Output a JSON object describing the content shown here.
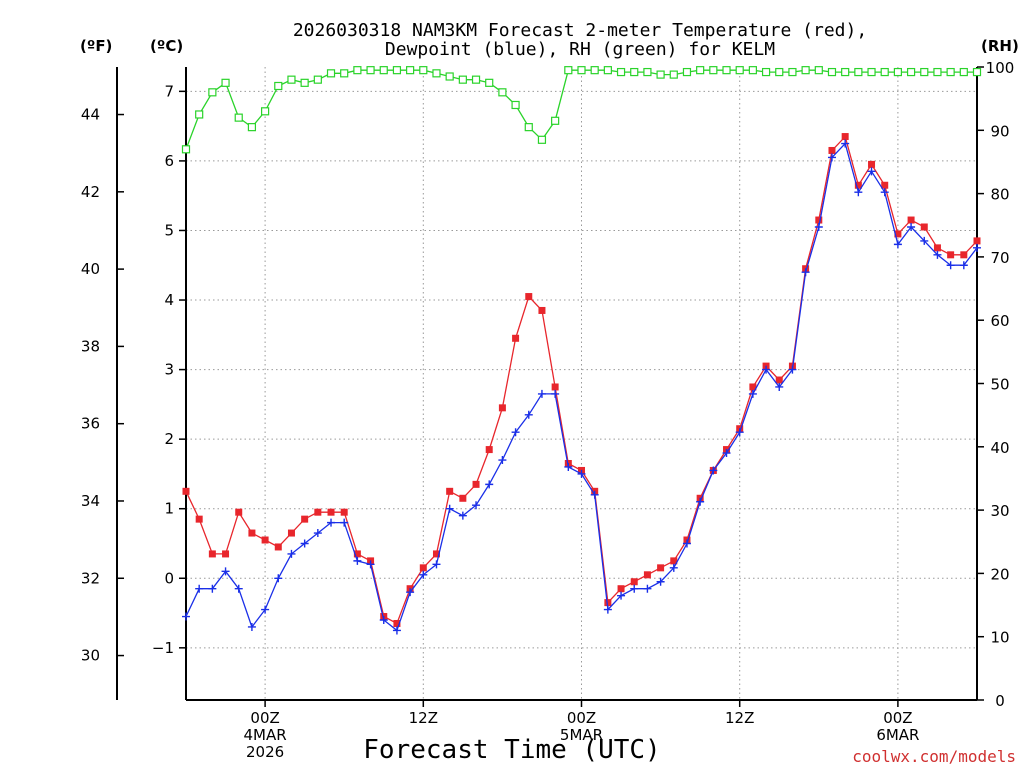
{
  "colors": {
    "temperature": "#e8262c",
    "dewpoint": "#1a2fe8",
    "rh": "#2ad32a",
    "grid": "#9a9a9a",
    "axis": "#000000",
    "credit": "#d03030"
  },
  "chart_data": {
    "type": "line",
    "title_lines": [
      "2026030318 NAM3KM Forecast 2-meter Temperature (red),",
      "Dewpoint (blue), RH (green) for KELM"
    ],
    "xlabel": "Forecast Time (UTC)",
    "credit": "coolwx.com/models",
    "unit_labels": {
      "fahrenheit": "(ºF)",
      "celsius": "(ºC)",
      "rh": "(RH)"
    },
    "x_range_hours": [
      0,
      60
    ],
    "x_ticks": [
      {
        "hour": 6,
        "lines": [
          "00Z",
          "4MAR",
          "2026"
        ]
      },
      {
        "hour": 18,
        "lines": [
          "12Z"
        ]
      },
      {
        "hour": 30,
        "lines": [
          "00Z",
          "5MAR"
        ]
      },
      {
        "hour": 42,
        "lines": [
          "12Z"
        ]
      },
      {
        "hour": 54,
        "lines": [
          "00Z",
          "6MAR"
        ]
      }
    ],
    "celsius_axis": {
      "range": [
        -1.75,
        7.35
      ],
      "ticks": [
        -1,
        0,
        1,
        2,
        3,
        4,
        5,
        6,
        7
      ]
    },
    "fahrenheit_axis": {
      "ticks": [
        30,
        32,
        34,
        36,
        38,
        40,
        42,
        44
      ]
    },
    "rh_axis": {
      "range": [
        0,
        100
      ],
      "ticks": [
        0,
        10,
        20,
        30,
        40,
        50,
        60,
        70,
        80,
        90,
        100
      ]
    },
    "series": [
      {
        "name": "Temperature",
        "units": "C",
        "marker": "filled-square",
        "values": [
          1.25,
          0.85,
          0.35,
          0.35,
          0.95,
          0.65,
          0.55,
          0.45,
          0.65,
          0.85,
          0.95,
          0.95,
          0.95,
          0.35,
          0.25,
          -0.55,
          -0.65,
          -0.15,
          0.15,
          0.35,
          1.25,
          1.15,
          1.35,
          1.85,
          2.45,
          3.45,
          4.05,
          3.85,
          2.75,
          1.65,
          1.55,
          1.25,
          -0.35,
          -0.15,
          -0.05,
          0.05,
          0.15,
          0.25,
          0.55,
          1.15,
          1.55,
          1.85,
          2.15,
          2.75,
          3.05,
          2.85,
          3.05,
          4.45,
          5.15,
          6.15,
          6.35,
          5.65,
          5.95,
          5.65,
          4.95,
          5.15,
          5.05,
          4.75,
          4.65,
          4.65,
          4.85
        ]
      },
      {
        "name": "Dewpoint",
        "units": "C",
        "marker": "plus",
        "values": [
          -0.55,
          -0.15,
          -0.15,
          0.1,
          -0.15,
          -0.7,
          -0.45,
          0.0,
          0.35,
          0.5,
          0.65,
          0.8,
          0.8,
          0.25,
          0.2,
          -0.6,
          -0.75,
          -0.2,
          0.05,
          0.2,
          1.0,
          0.9,
          1.05,
          1.35,
          1.7,
          2.1,
          2.35,
          2.65,
          2.65,
          1.6,
          1.5,
          1.2,
          -0.45,
          -0.25,
          -0.15,
          -0.15,
          -0.05,
          0.15,
          0.5,
          1.1,
          1.55,
          1.8,
          2.1,
          2.65,
          3.0,
          2.75,
          3.0,
          4.4,
          5.05,
          6.05,
          6.25,
          5.55,
          5.85,
          5.55,
          4.8,
          5.05,
          4.85,
          4.65,
          4.5,
          4.5,
          4.75
        ]
      },
      {
        "name": "RH",
        "units": "%",
        "marker": "open-square",
        "values": [
          87,
          92.5,
          96,
          97.5,
          92,
          90.5,
          93,
          97,
          98,
          97.5,
          98,
          99,
          99,
          99.5,
          99.5,
          99.5,
          99.5,
          99.5,
          99.5,
          99,
          98.5,
          98,
          98,
          97.5,
          96,
          94,
          90.5,
          88.5,
          91.5,
          99.5,
          99.5,
          99.5,
          99.5,
          99.2,
          99.2,
          99.2,
          98.8,
          98.8,
          99.2,
          99.5,
          99.5,
          99.5,
          99.5,
          99.5,
          99.2,
          99.2,
          99.2,
          99.5,
          99.5,
          99.2,
          99.2,
          99.2,
          99.2,
          99.2,
          99.2,
          99.2,
          99.2,
          99.2,
          99.2,
          99.2,
          99.2
        ]
      }
    ]
  }
}
